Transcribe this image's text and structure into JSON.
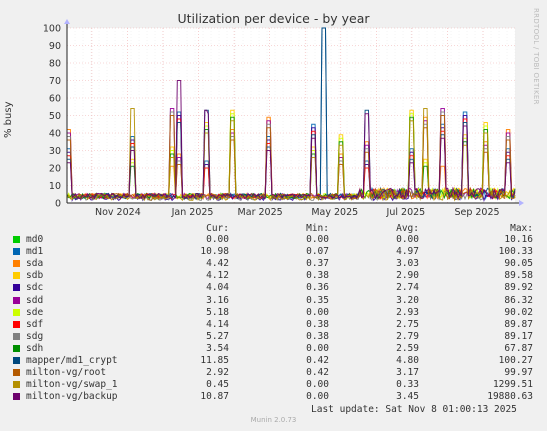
{
  "chart_data": {
    "type": "line",
    "title": "Utilization per device - by year",
    "ylabel": "% busy",
    "ylim": [
      0,
      100
    ],
    "yticks": [
      0,
      10,
      20,
      30,
      40,
      50,
      60,
      70,
      80,
      90,
      100
    ],
    "xticks": [
      "Nov 2024",
      "Jan 2025",
      "Mar 2025",
      "May 2025",
      "Jul 2025",
      "Sep 2025"
    ],
    "grid": true,
    "series": [
      {
        "name": "md0",
        "color": "#00cc00"
      },
      {
        "name": "md1",
        "color": "#0066b3"
      },
      {
        "name": "sda",
        "color": "#ff8000"
      },
      {
        "name": "sdb",
        "color": "#ffcc00"
      },
      {
        "name": "sdc",
        "color": "#330099"
      },
      {
        "name": "sdd",
        "color": "#990099"
      },
      {
        "name": "sde",
        "color": "#ccff00"
      },
      {
        "name": "sdf",
        "color": "#ff0000"
      },
      {
        "name": "sdg",
        "color": "#808080"
      },
      {
        "name": "sdh",
        "color": "#008f00"
      },
      {
        "name": "mapper/md1_crypt",
        "color": "#00487d"
      },
      {
        "name": "milton-vg/root",
        "color": "#b35a00"
      },
      {
        "name": "milton-vg/swap_1",
        "color": "#b38f00"
      },
      {
        "name": "milton-vg/backup",
        "color": "#6b006b"
      }
    ]
  },
  "side_text": "RRDTOOL / TOBI OETIKER",
  "legend": {
    "headers": {
      "cur": "Cur:",
      "min": "Min:",
      "avg": "Avg:",
      "max": "Max:"
    },
    "rows": [
      {
        "name": "md0",
        "cur": "0.00",
        "min": "0.00",
        "avg": "0.00",
        "max": "10.16",
        "color": "#00cc00"
      },
      {
        "name": "md1",
        "cur": "10.98",
        "min": "0.07",
        "avg": "4.97",
        "max": "100.33",
        "color": "#0066b3"
      },
      {
        "name": "sda",
        "cur": "4.42",
        "min": "0.37",
        "avg": "3.03",
        "max": "90.05",
        "color": "#ff8000"
      },
      {
        "name": "sdb",
        "cur": "4.12",
        "min": "0.38",
        "avg": "2.90",
        "max": "89.58",
        "color": "#ffcc00"
      },
      {
        "name": "sdc",
        "cur": "4.04",
        "min": "0.36",
        "avg": "2.74",
        "max": "89.92",
        "color": "#330099"
      },
      {
        "name": "sdd",
        "cur": "3.16",
        "min": "0.35",
        "avg": "3.20",
        "max": "86.32",
        "color": "#990099"
      },
      {
        "name": "sde",
        "cur": "5.18",
        "min": "0.00",
        "avg": "2.93",
        "max": "90.02",
        "color": "#ccff00"
      },
      {
        "name": "sdf",
        "cur": "4.14",
        "min": "0.38",
        "avg": "2.75",
        "max": "89.87",
        "color": "#ff0000"
      },
      {
        "name": "sdg",
        "cur": "5.27",
        "min": "0.38",
        "avg": "2.79",
        "max": "89.17",
        "color": "#808080"
      },
      {
        "name": "sdh",
        "cur": "3.54",
        "min": "0.00",
        "avg": "2.59",
        "max": "67.87",
        "color": "#008f00"
      },
      {
        "name": "mapper/md1_crypt",
        "cur": "11.85",
        "min": "0.42",
        "avg": "4.80",
        "max": "100.27",
        "color": "#00487d"
      },
      {
        "name": "milton-vg/root",
        "cur": "2.92",
        "min": "0.42",
        "avg": "3.17",
        "max": "99.97",
        "color": "#b35a00"
      },
      {
        "name": "milton-vg/swap_1",
        "cur": "0.45",
        "min": "0.00",
        "avg": "0.33",
        "max": "1299.51",
        "color": "#b38f00"
      },
      {
        "name": "milton-vg/backup",
        "cur": "10.87",
        "min": "0.00",
        "avg": "3.45",
        "max": "19880.63",
        "color": "#6b006b"
      }
    ]
  },
  "footer": {
    "last_update": "Last update: Sat Nov  8 01:00:13 2025",
    "munin": "Munin 2.0.73"
  }
}
